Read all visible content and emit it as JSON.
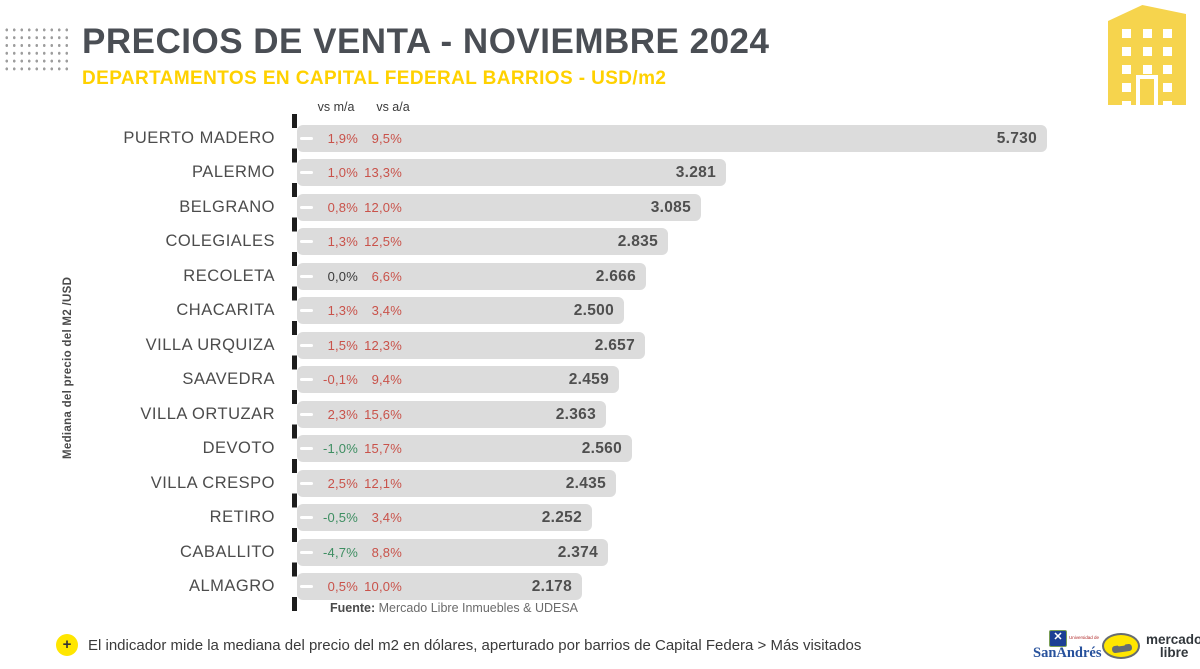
{
  "header": {
    "title": "PRECIOS DE VENTA - NOVIEMBRE 2024",
    "subtitle": "DEPARTAMENTOS EN CAPITAL FEDERAL BARRIOS - USD/m2"
  },
  "colors": {
    "title_gray": "#4a4e54",
    "accent_yellow": "#ffd100",
    "bar_gray": "#dcdcdc",
    "value_gray": "#4f4f4f",
    "pct_red": "#c9524a",
    "pct_green": "#3e8e62",
    "pct_dark": "#3a3a3a",
    "ml_yellow": "#ffe600"
  },
  "chart_data": {
    "type": "bar",
    "orientation": "horizontal",
    "title": "PRECIOS DE VENTA - NOVIEMBRE 2024",
    "subtitle": "DEPARTAMENTOS EN CAPITAL FEDERAL BARRIOS - USD/m2",
    "value_axis_label": "Mediana del precio del M2 /USD",
    "column_headers": {
      "ma": "vs m/a",
      "aa": "vs a/a"
    },
    "x_range": [
      0,
      5730
    ],
    "rows": [
      {
        "label": "PUERTO MADERO",
        "vs_ma": "1,9%",
        "ma_color": "red",
        "vs_aa": "9,5%",
        "aa_color": "red",
        "value": 5730,
        "value_label": "5.730"
      },
      {
        "label": "PALERMO",
        "vs_ma": "1,0%",
        "ma_color": "red",
        "vs_aa": "13,3%",
        "aa_color": "red",
        "value": 3281,
        "value_label": "3.281"
      },
      {
        "label": "BELGRANO",
        "vs_ma": "0,8%",
        "ma_color": "red",
        "vs_aa": "12,0%",
        "aa_color": "red",
        "value": 3085,
        "value_label": "3.085"
      },
      {
        "label": "COLEGIALES",
        "vs_ma": "1,3%",
        "ma_color": "red",
        "vs_aa": "12,5%",
        "aa_color": "red",
        "value": 2835,
        "value_label": "2.835"
      },
      {
        "label": "RECOLETA",
        "vs_ma": "0,0%",
        "ma_color": "dark",
        "vs_aa": "6,6%",
        "aa_color": "red",
        "value": 2666,
        "value_label": "2.666"
      },
      {
        "label": "CHACARITA",
        "vs_ma": "1,3%",
        "ma_color": "red",
        "vs_aa": "3,4%",
        "aa_color": "red",
        "value": 2500,
        "value_label": "2.500"
      },
      {
        "label": "VILLA URQUIZA",
        "vs_ma": "1,5%",
        "ma_color": "red",
        "vs_aa": "12,3%",
        "aa_color": "red",
        "value": 2657,
        "value_label": "2.657"
      },
      {
        "label": "SAAVEDRA",
        "vs_ma": "-0,1%",
        "ma_color": "red",
        "vs_aa": "9,4%",
        "aa_color": "red",
        "value": 2459,
        "value_label": "2.459"
      },
      {
        "label": "VILLA ORTUZAR",
        "vs_ma": "2,3%",
        "ma_color": "red",
        "vs_aa": "15,6%",
        "aa_color": "red",
        "value": 2363,
        "value_label": "2.363"
      },
      {
        "label": "DEVOTO",
        "vs_ma": "-1,0%",
        "ma_color": "green",
        "vs_aa": "15,7%",
        "aa_color": "red",
        "value": 2560,
        "value_label": "2.560"
      },
      {
        "label": "VILLA CRESPO",
        "vs_ma": "2,5%",
        "ma_color": "red",
        "vs_aa": "12,1%",
        "aa_color": "red",
        "value": 2435,
        "value_label": "2.435"
      },
      {
        "label": "RETIRO",
        "vs_ma": "-0,5%",
        "ma_color": "green",
        "vs_aa": "3,4%",
        "aa_color": "red",
        "value": 2252,
        "value_label": "2.252"
      },
      {
        "label": "CABALLITO",
        "vs_ma": "-4,7%",
        "ma_color": "green",
        "vs_aa": "8,8%",
        "aa_color": "red",
        "value": 2374,
        "value_label": "2.374"
      },
      {
        "label": "ALMAGRO",
        "vs_ma": "0,5%",
        "ma_color": "red",
        "vs_aa": "10,0%",
        "aa_color": "red",
        "value": 2178,
        "value_label": "2.178"
      }
    ],
    "source_label": "Fuente:",
    "source_text": " Mercado Libre Inmuebles & UDESA"
  },
  "footer": {
    "plus": "+",
    "note": "El indicador mide la mediana del precio del m2 en dólares, aperturado por barrios de Capital Federa > Más visitados",
    "logos": {
      "sanandres_small": "Universidad de",
      "sanandres_name": "SanAndrés",
      "sanandres_crest": "✕",
      "ml_line1": "mercado",
      "ml_line2": "libre"
    }
  }
}
